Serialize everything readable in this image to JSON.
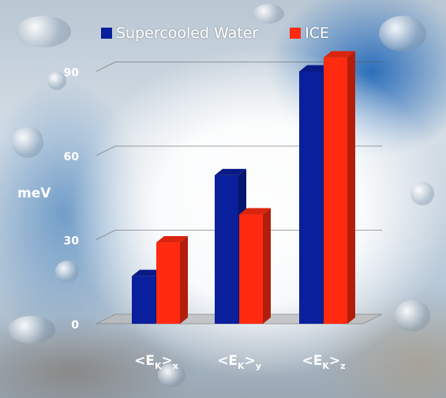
{
  "chart_data": {
    "type": "bar",
    "ylabel": "meV",
    "ylim": [
      0,
      90
    ],
    "yticks": [
      0,
      30,
      60,
      90
    ],
    "categories": [
      {
        "main": "<E",
        "sub1": "K",
        "mid": ">",
        "sub2": "x"
      },
      {
        "main": "<E",
        "sub1": "K",
        "mid": ">",
        "sub2": "y"
      },
      {
        "main": "<E",
        "sub1": "K",
        "mid": ">",
        "sub2": "z"
      }
    ],
    "series": [
      {
        "name": "Supercooled Water",
        "color": "#0a1f9c",
        "values": [
          17,
          53,
          90
        ]
      },
      {
        "name": "ICE",
        "color": "#ff2a10",
        "values": [
          29,
          39,
          95
        ]
      }
    ],
    "grid": true,
    "legend_position": "top",
    "projection": "3d"
  }
}
